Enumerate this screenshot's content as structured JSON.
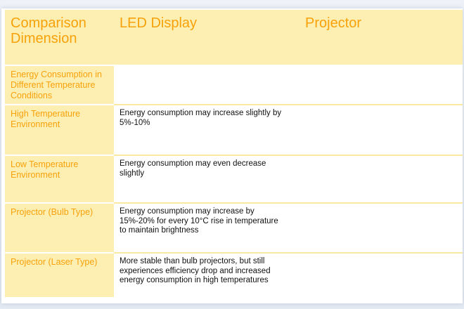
{
  "table": {
    "headers": [
      "Comparison Dimension",
      "LED Display",
      "Projector"
    ],
    "rows": [
      {
        "dimension": "Energy Consumption in Different Temperature Conditions",
        "led": "",
        "projector": ""
      },
      {
        "dimension": "High Temperature Environment",
        "led": "Energy consumption may increase slightly by 5%-10%",
        "projector": ""
      },
      {
        "dimension": "Low Temperature Environment",
        "led": "Energy consumption may even decrease slightly",
        "projector": ""
      },
      {
        "dimension": "Projector (Bulb Type)",
        "led": "Energy consumption may increase by 15%-20% for every 10°C rise in temperature to maintain brightness",
        "projector": ""
      },
      {
        "dimension": "Projector (Laser Type)",
        "led": "More stable than bulb projectors, but still experiences efficiency drop and increased energy consumption in high temperatures",
        "projector": ""
      }
    ]
  },
  "colors": {
    "header_bg": "#fdeeb2",
    "accent_text": "#f7a20a",
    "body_text": "#111111"
  }
}
